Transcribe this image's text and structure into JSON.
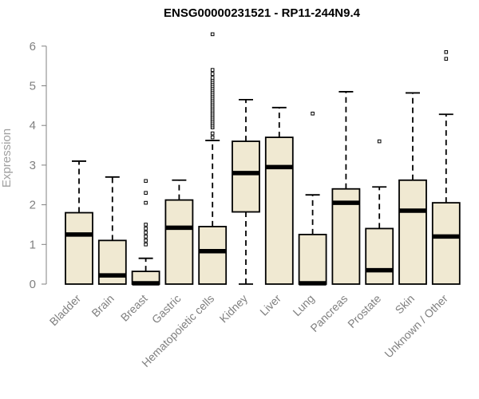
{
  "chart_data": {
    "type": "boxplot",
    "title": "ENSG00000231521 - RP11-244N9.4",
    "xlabel": "",
    "ylabel": "Expression",
    "ylim": [
      0,
      6.3
    ],
    "yticks": [
      "0",
      "1",
      "2",
      "3",
      "4",
      "5",
      "6"
    ],
    "categories": [
      "Bladder",
      "Brain",
      "Breast",
      "Gastric",
      "Hematopoietic cells",
      "Kidney",
      "Liver",
      "Lung",
      "Pancreas",
      "Prostate",
      "Skin",
      "Unknown / Other"
    ],
    "box_fill": "#f0e9d2",
    "series": [
      {
        "name": "Bladder",
        "min": 0,
        "q1": 0,
        "median": 1.25,
        "q3": 1.8,
        "max": 3.1,
        "outliers": []
      },
      {
        "name": "Brain",
        "min": 0,
        "q1": 0,
        "median": 0.22,
        "q3": 1.1,
        "max": 2.7,
        "outliers": []
      },
      {
        "name": "Breast",
        "min": 0,
        "q1": 0,
        "median": 0.02,
        "q3": 0.32,
        "max": 0.65,
        "outliers": [
          1.0,
          1.1,
          1.2,
          1.3,
          1.4,
          1.5,
          2.05,
          2.3,
          2.6
        ]
      },
      {
        "name": "Gastric",
        "min": 0,
        "q1": 0,
        "median": 1.42,
        "q3": 2.12,
        "max": 2.62,
        "outliers": []
      },
      {
        "name": "Hematopoietic cells",
        "min": 0,
        "q1": 0,
        "median": 0.83,
        "q3": 1.45,
        "max": 3.62,
        "outliers": [
          3.7,
          3.8,
          3.95,
          4.0,
          4.05,
          4.1,
          4.15,
          4.2,
          4.25,
          4.3,
          4.35,
          4.4,
          4.45,
          4.5,
          4.55,
          4.6,
          4.65,
          4.7,
          4.75,
          4.8,
          4.85,
          4.9,
          4.95,
          5.0,
          5.05,
          5.1,
          5.15,
          5.2,
          5.3,
          5.4,
          6.3
        ]
      },
      {
        "name": "Kidney",
        "min": 0,
        "q1": 1.82,
        "median": 2.8,
        "q3": 3.6,
        "max": 4.65,
        "outliers": []
      },
      {
        "name": "Liver",
        "min": 0,
        "q1": 0,
        "median": 2.95,
        "q3": 3.7,
        "max": 4.45,
        "outliers": []
      },
      {
        "name": "Lung",
        "min": 0,
        "q1": 0,
        "median": 0.02,
        "q3": 1.25,
        "max": 2.25,
        "outliers": [
          4.3
        ]
      },
      {
        "name": "Pancreas",
        "min": 0,
        "q1": 0,
        "median": 2.05,
        "q3": 2.4,
        "max": 4.85,
        "outliers": []
      },
      {
        "name": "Prostate",
        "min": 0,
        "q1": 0,
        "median": 0.35,
        "q3": 1.4,
        "max": 2.45,
        "outliers": [
          3.6
        ]
      },
      {
        "name": "Skin",
        "min": 0,
        "q1": 0,
        "median": 1.85,
        "q3": 2.62,
        "max": 4.82,
        "outliers": []
      },
      {
        "name": "Unknown / Other",
        "min": 0,
        "q1": 0,
        "median": 1.2,
        "q3": 2.05,
        "max": 4.28,
        "outliers": [
          5.68,
          5.85
        ]
      }
    ]
  }
}
